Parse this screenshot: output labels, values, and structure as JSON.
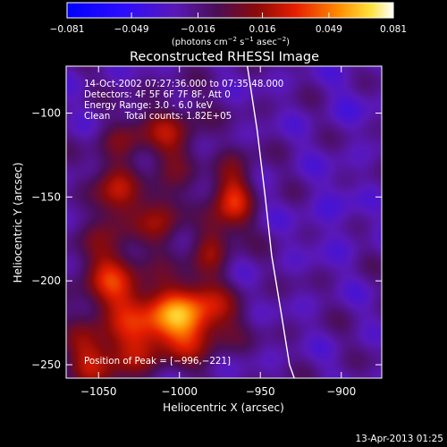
{
  "chart_data": {
    "type": "heatmap",
    "title": "Reconstructed RHESSI Image",
    "xlabel": "Heliocentric X (arcsec)",
    "ylabel": "Heliocentric Y (arcsec)",
    "xlim": [
      -1070,
      -875
    ],
    "ylim": [
      -258,
      -72
    ],
    "x_ticks": [
      -1050,
      -1000,
      -950,
      -900
    ],
    "x_tick_labels": [
      "−1050",
      "−1000",
      "−950",
      "−900"
    ],
    "y_ticks": [
      -100,
      -150,
      -200,
      -250
    ],
    "y_tick_labels": [
      "−100",
      "−150",
      "−200",
      "−250"
    ],
    "colorbar": {
      "range": [
        -0.081,
        0.081
      ],
      "ticks": [
        -0.081,
        -0.049,
        -0.016,
        0.016,
        0.049,
        0.081
      ],
      "tick_labels": [
        "−0.081",
        "−0.049",
        "−0.016",
        "0.016",
        "0.049",
        "0.081"
      ],
      "unit_parts": [
        "(photons cm",
        "−2",
        " s",
        "−1",
        " asec",
        "−2",
        ")"
      ]
    },
    "annotations": [
      "14-Oct-2002 07:27:36.000 to 07:35:48.000",
      "Detectors: 4F 5F 6F 7F 8F, Att 0",
      "Energy Range: 3.0 - 6.0 keV",
      "Clean     Total counts: 1.82E+05"
    ],
    "peak_label": "Position of Peak = [−996,−221]",
    "peak": {
      "x": -996,
      "y": -221,
      "value": 0.081
    },
    "sources": [
      {
        "x": -998,
        "y": -222,
        "amp": 0.083,
        "sx": 19,
        "sy": 15
      },
      {
        "x": -967,
        "y": -149,
        "amp": 0.05,
        "sx": 9,
        "sy": 15
      },
      {
        "x": -1042,
        "y": -202,
        "amp": 0.046,
        "sx": 14,
        "sy": 22
      },
      {
        "x": -1040,
        "y": -148,
        "amp": 0.038,
        "sx": 10,
        "sy": 15
      },
      {
        "x": -1010,
        "y": -158,
        "amp": 0.036,
        "sx": 9,
        "sy": 15
      },
      {
        "x": -980,
        "y": -178,
        "amp": 0.032,
        "sx": 8,
        "sy": 12
      },
      {
        "x": -1005,
        "y": -112,
        "amp": 0.034,
        "sx": 14,
        "sy": 14
      },
      {
        "x": -1058,
        "y": -248,
        "amp": 0.036,
        "sx": 12,
        "sy": 12
      },
      {
        "x": -1030,
        "y": -242,
        "amp": 0.033,
        "sx": 12,
        "sy": 11
      },
      {
        "x": -1035,
        "y": -115,
        "amp": 0.02,
        "sx": 10,
        "sy": 10
      },
      {
        "x": -905,
        "y": -160,
        "amp": -0.009,
        "sx": 14,
        "sy": 18
      },
      {
        "x": -895,
        "y": -95,
        "amp": -0.006,
        "sx": 14,
        "sy": 14
      }
    ],
    "background": -0.022,
    "limb": {
      "x": [
        -958,
        -952,
        -947,
        -943,
        -937,
        -932,
        -929
      ],
      "y": [
        -72,
        -110,
        -150,
        -185,
        -220,
        -250,
        -258
      ]
    },
    "colormap": "hot-on-purple",
    "grid": false,
    "timestamp": "13-Apr-2013 01:25"
  }
}
